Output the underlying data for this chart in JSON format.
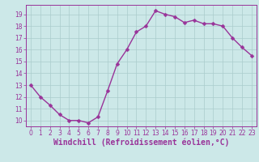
{
  "x": [
    0,
    1,
    2,
    3,
    4,
    5,
    6,
    7,
    8,
    9,
    10,
    11,
    12,
    13,
    14,
    15,
    16,
    17,
    18,
    19,
    20,
    21,
    22,
    23
  ],
  "y": [
    13.0,
    12.0,
    11.3,
    10.5,
    10.0,
    10.0,
    9.8,
    10.3,
    12.5,
    14.8,
    16.0,
    17.5,
    18.0,
    19.3,
    19.0,
    18.8,
    18.3,
    18.5,
    18.2,
    18.2,
    18.0,
    17.0,
    16.2,
    15.5
  ],
  "line_color": "#993399",
  "marker_color": "#993399",
  "bg_color": "#cce8e8",
  "grid_color": "#aacccc",
  "xlabel": "Windchill (Refroidissement éolien,°C)",
  "xlabel_color": "#993399",
  "ylim": [
    9.5,
    19.8
  ],
  "xlim": [
    -0.5,
    23.5
  ],
  "yticks": [
    10,
    11,
    12,
    13,
    14,
    15,
    16,
    17,
    18,
    19
  ],
  "xticks": [
    0,
    1,
    2,
    3,
    4,
    5,
    6,
    7,
    8,
    9,
    10,
    11,
    12,
    13,
    14,
    15,
    16,
    17,
    18,
    19,
    20,
    21,
    22,
    23
  ],
  "tick_color": "#993399",
  "tick_fontsize": 5.5,
  "xlabel_fontsize": 7.0,
  "spine_color": "#993399",
  "line_width": 1.0,
  "marker_size": 2.5
}
